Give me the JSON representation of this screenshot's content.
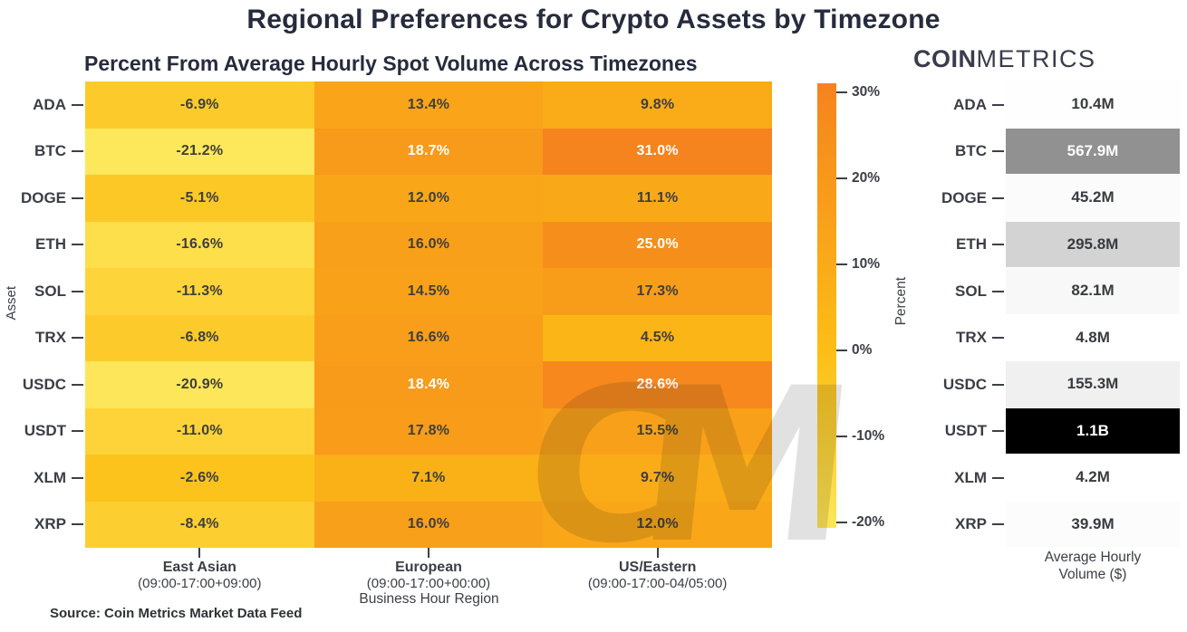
{
  "title": "Regional Preferences for Crypto Assets by Timezone",
  "subtitle": "Percent From Average Hourly Spot Volume Across Timezones",
  "logo": {
    "bold": "COIN",
    "light": "METRICS"
  },
  "source": "Source: Coin Metrics Market Data Feed",
  "watermark": "CM",
  "colors": {
    "title_text": "#262B3D",
    "axis_text": "#3B3E46",
    "value_dark": "#3E3F3D",
    "value_light": "#FFFFFF"
  },
  "chart_data": {
    "type": "heatmap",
    "title": "Percent From Average Hourly Spot Volume Across Timezones",
    "ylabel": "Asset",
    "xlabel": "Business Hour Region",
    "assets": [
      "ADA",
      "BTC",
      "DOGE",
      "ETH",
      "SOL",
      "TRX",
      "USDC",
      "USDT",
      "XLM",
      "XRP"
    ],
    "columns": [
      {
        "label": "East Asian",
        "sub": "(09:00-17:00+09:00)"
      },
      {
        "label": "European",
        "sub": "(09:00-17:00+00:00)"
      },
      {
        "label": "US/Eastern",
        "sub": "(09:00-17:00-04/05:00)"
      }
    ],
    "values_pct": [
      [
        -6.9,
        13.4,
        9.8
      ],
      [
        -21.2,
        18.7,
        31.0
      ],
      [
        -5.1,
        12.0,
        11.1
      ],
      [
        -16.6,
        16.0,
        25.0
      ],
      [
        -11.3,
        14.5,
        17.3
      ],
      [
        -6.8,
        16.6,
        4.5
      ],
      [
        -20.9,
        18.4,
        28.6
      ],
      [
        -11.0,
        17.8,
        15.5
      ],
      [
        -2.6,
        7.1,
        9.7
      ],
      [
        -8.4,
        16.0,
        12.0
      ]
    ],
    "colorbar": {
      "label": "Percent",
      "ticks": [
        "30%",
        "20%",
        "10%",
        "0%",
        "-10%",
        "-20%"
      ],
      "tick_values": [
        30,
        20,
        10,
        0,
        -10,
        -20
      ],
      "vmin": -21.2,
      "vmax": 31.0,
      "color_low": "#FDE75A",
      "color_mid": "#FCBE15",
      "color_high": "#F5831E"
    },
    "volume_panel": {
      "label_line1": "Average Hourly",
      "label_line2": "Volume ($)",
      "values_text": [
        "10.4M",
        "567.9M",
        "45.2M",
        "295.8M",
        "82.1M",
        "4.8M",
        "155.3M",
        "1.1B",
        "4.2M",
        "39.9M"
      ],
      "values_millions": [
        10.4,
        567.9,
        45.2,
        295.8,
        82.1,
        4.8,
        155.3,
        1100,
        4.2,
        39.9
      ],
      "color_low": "#FFFFFF",
      "color_high": "#000000"
    }
  }
}
